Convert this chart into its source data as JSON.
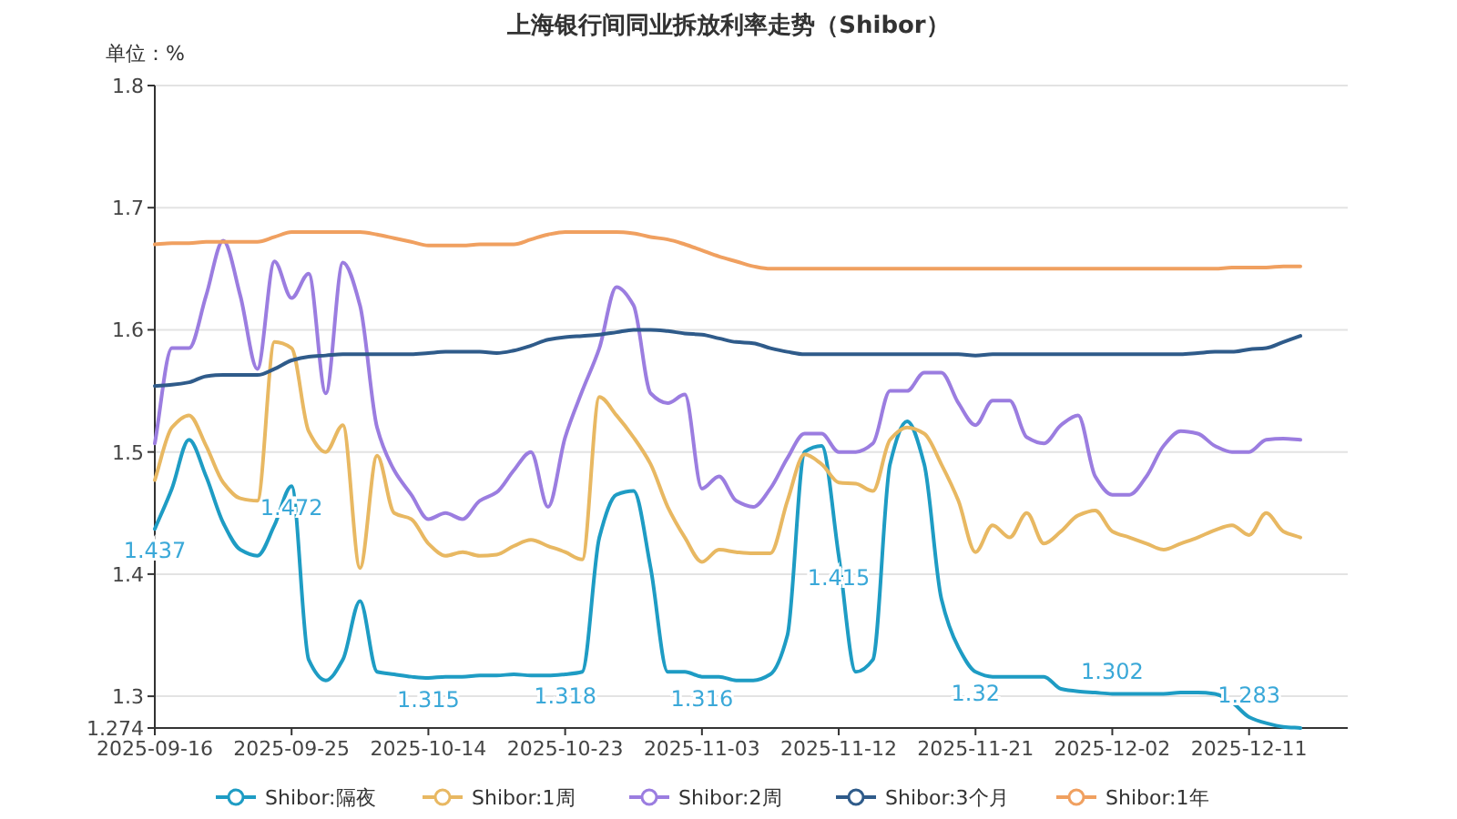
{
  "chart_data": {
    "type": "line",
    "title": "上海银行间同业拆放利率走势（Shibor）",
    "ylabel": "单位：%",
    "categories": [
      "2025-09-16",
      null,
      null,
      null,
      null,
      null,
      null,
      null,
      "2025-09-25",
      null,
      null,
      null,
      null,
      null,
      null,
      null,
      "2025-10-14",
      null,
      null,
      null,
      null,
      null,
      null,
      null,
      "2025-10-23",
      null,
      null,
      null,
      null,
      null,
      null,
      null,
      "2025-11-03",
      null,
      null,
      null,
      null,
      null,
      null,
      null,
      "2025-11-12",
      null,
      null,
      null,
      null,
      null,
      null,
      null,
      "2025-11-21",
      null,
      null,
      null,
      null,
      null,
      null,
      null,
      "2025-12-02",
      null,
      null,
      null,
      null,
      null,
      null,
      null,
      "2025-12-11",
      null,
      null,
      null
    ],
    "ylim": [
      1.274,
      1.8
    ],
    "yticks": [
      1.274,
      1.3,
      1.4,
      1.5,
      1.6,
      1.7,
      1.8
    ],
    "grid": "y",
    "legend": "bottom",
    "line_style": "solid",
    "series": [
      {
        "name": "Shibor:隔夜",
        "color": "#1e9cc4",
        "values": [
          1.437,
          1.47,
          1.51,
          1.48,
          1.442,
          1.42,
          1.415,
          1.44,
          1.472,
          1.33,
          1.313,
          1.33,
          1.378,
          1.32,
          1.318,
          1.316,
          1.315,
          1.316,
          1.316,
          1.317,
          1.317,
          1.318,
          1.317,
          1.317,
          1.318,
          1.32,
          1.43,
          1.465,
          1.468,
          1.405,
          1.32,
          1.32,
          1.316,
          1.316,
          1.313,
          1.313,
          1.318,
          1.35,
          1.5,
          1.505,
          1.415,
          1.32,
          1.33,
          1.49,
          1.525,
          1.49,
          1.38,
          1.34,
          1.32,
          1.316,
          1.316,
          1.316,
          1.316,
          1.306,
          1.304,
          1.303,
          1.302,
          1.302,
          1.302,
          1.302,
          1.303,
          1.303,
          1.302,
          1.295,
          1.283,
          1.278,
          1.275,
          1.274
        ],
        "value_labels": [
          "1.437",
          null,
          null,
          null,
          null,
          null,
          null,
          null,
          "1.472",
          null,
          null,
          null,
          null,
          null,
          null,
          null,
          "1.315",
          null,
          null,
          null,
          null,
          null,
          null,
          null,
          "1.318",
          null,
          null,
          null,
          null,
          null,
          null,
          null,
          "1.316",
          null,
          null,
          null,
          null,
          null,
          null,
          null,
          "1.415",
          null,
          null,
          null,
          null,
          null,
          null,
          null,
          "1.32",
          null,
          null,
          null,
          null,
          null,
          null,
          null,
          "1.302",
          null,
          null,
          null,
          null,
          null,
          null,
          null,
          "1.283",
          null,
          null,
          null
        ]
      },
      {
        "name": "Shibor:1周",
        "color": "#e8b862",
        "values": [
          1.477,
          1.52,
          1.53,
          1.505,
          1.475,
          1.462,
          1.46,
          1.59,
          1.585,
          1.517,
          1.5,
          1.522,
          1.405,
          1.497,
          1.45,
          1.445,
          1.425,
          1.415,
          1.418,
          1.415,
          1.416,
          1.423,
          1.428,
          1.423,
          1.418,
          1.412,
          1.545,
          1.53,
          1.512,
          1.49,
          1.455,
          1.43,
          1.41,
          1.42,
          1.418,
          1.417,
          1.417,
          1.46,
          1.498,
          1.49,
          1.475,
          1.474,
          1.468,
          1.51,
          1.52,
          1.515,
          1.49,
          1.46,
          1.418,
          1.44,
          1.43,
          1.45,
          1.425,
          1.435,
          1.448,
          1.452,
          1.435,
          1.43,
          1.425,
          1.42,
          1.425,
          1.43,
          1.436,
          1.44,
          1.432,
          1.45,
          1.435,
          1.43
        ]
      },
      {
        "name": "Shibor:2周",
        "color": "#9b7de0",
        "values": [
          1.507,
          1.585,
          1.585,
          1.628,
          1.673,
          1.628,
          1.568,
          1.656,
          1.626,
          1.646,
          1.548,
          1.655,
          1.62,
          1.52,
          1.485,
          1.465,
          1.445,
          1.45,
          1.445,
          1.46,
          1.467,
          1.485,
          1.5,
          1.455,
          1.512,
          1.55,
          1.585,
          1.635,
          1.62,
          1.548,
          1.54,
          1.547,
          1.47,
          1.48,
          1.46,
          1.455,
          1.47,
          1.495,
          1.515,
          1.515,
          1.5,
          1.5,
          1.507,
          1.55,
          1.55,
          1.565,
          1.565,
          1.54,
          1.522,
          1.542,
          1.542,
          1.512,
          1.507,
          1.522,
          1.53,
          1.48,
          1.465,
          1.465,
          1.48,
          1.505,
          1.517,
          1.515,
          1.505,
          1.5,
          1.5,
          1.51,
          1.511,
          1.51
        ]
      },
      {
        "name": "Shibor:3个月",
        "color": "#2f5b8a",
        "values": [
          1.554,
          1.555,
          1.557,
          1.562,
          1.563,
          1.563,
          1.563,
          1.568,
          1.575,
          1.578,
          1.579,
          1.58,
          1.58,
          1.58,
          1.58,
          1.58,
          1.581,
          1.582,
          1.582,
          1.582,
          1.581,
          1.583,
          1.587,
          1.592,
          1.594,
          1.595,
          1.596,
          1.598,
          1.6,
          1.6,
          1.599,
          1.597,
          1.596,
          1.593,
          1.59,
          1.589,
          1.585,
          1.582,
          1.58,
          1.58,
          1.58,
          1.58,
          1.58,
          1.58,
          1.58,
          1.58,
          1.58,
          1.58,
          1.579,
          1.58,
          1.58,
          1.58,
          1.58,
          1.58,
          1.58,
          1.58,
          1.58,
          1.58,
          1.58,
          1.58,
          1.58,
          1.581,
          1.582,
          1.582,
          1.584,
          1.585,
          1.59,
          1.595
        ]
      },
      {
        "name": "Shibor:1年",
        "color": "#f0a060",
        "values": [
          1.67,
          1.671,
          1.671,
          1.672,
          1.672,
          1.672,
          1.672,
          1.676,
          1.68,
          1.68,
          1.68,
          1.68,
          1.68,
          1.678,
          1.675,
          1.672,
          1.669,
          1.669,
          1.669,
          1.67,
          1.67,
          1.67,
          1.674,
          1.678,
          1.68,
          1.68,
          1.68,
          1.68,
          1.679,
          1.676,
          1.674,
          1.67,
          1.665,
          1.66,
          1.656,
          1.652,
          1.65,
          1.65,
          1.65,
          1.65,
          1.65,
          1.65,
          1.65,
          1.65,
          1.65,
          1.65,
          1.65,
          1.65,
          1.65,
          1.65,
          1.65,
          1.65,
          1.65,
          1.65,
          1.65,
          1.65,
          1.65,
          1.65,
          1.65,
          1.65,
          1.65,
          1.65,
          1.65,
          1.651,
          1.651,
          1.651,
          1.652,
          1.652
        ]
      }
    ]
  }
}
